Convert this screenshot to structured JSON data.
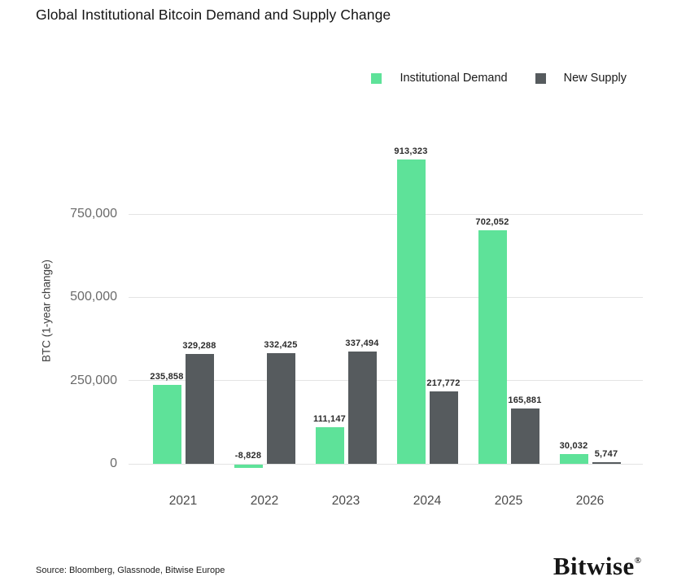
{
  "page": {
    "title": "Global Institutional Bitcoin Demand and Supply Change"
  },
  "legend": {
    "items": [
      {
        "label": "Institutional Demand",
        "color": "#5ee299"
      },
      {
        "label": "New Supply",
        "color": "#565b5e"
      }
    ]
  },
  "chart_data": {
    "type": "bar",
    "title": "Global Institutional Bitcoin Demand and Supply Change",
    "categories": [
      "2021",
      "2022",
      "2023",
      "2024",
      "2025",
      "2026"
    ],
    "series": [
      {
        "name": "Institutional Demand",
        "color": "#5ee299",
        "values": [
          235858,
          -8828,
          111147,
          913323,
          702052,
          30032
        ],
        "labels": [
          "235,858",
          "-8,828",
          "111,147",
          "913,323",
          "702,052",
          "30,032"
        ]
      },
      {
        "name": "New Supply",
        "color": "#565b5e",
        "values": [
          329288,
          332425,
          337494,
          217772,
          165881,
          5747
        ],
        "labels": [
          "329,288",
          "332,425",
          "337,494",
          "217,772",
          "165,881",
          "5,747"
        ]
      }
    ],
    "xlabel": "",
    "ylabel": "BTC (1-year change)",
    "yticks": [
      {
        "value": 0,
        "label": "0"
      },
      {
        "value": 250000,
        "label": "250,000"
      },
      {
        "value": 500000,
        "label": "500,000"
      },
      {
        "value": 750000,
        "label": "750,000"
      }
    ],
    "ylim": [
      -30000,
      960000
    ],
    "grid": true,
    "legend_position": "top-right"
  },
  "footer": {
    "source": "Source: Bloomberg, Glassnode, Bitwise Europe",
    "brand": "Bitwise",
    "brand_mark": "®"
  }
}
